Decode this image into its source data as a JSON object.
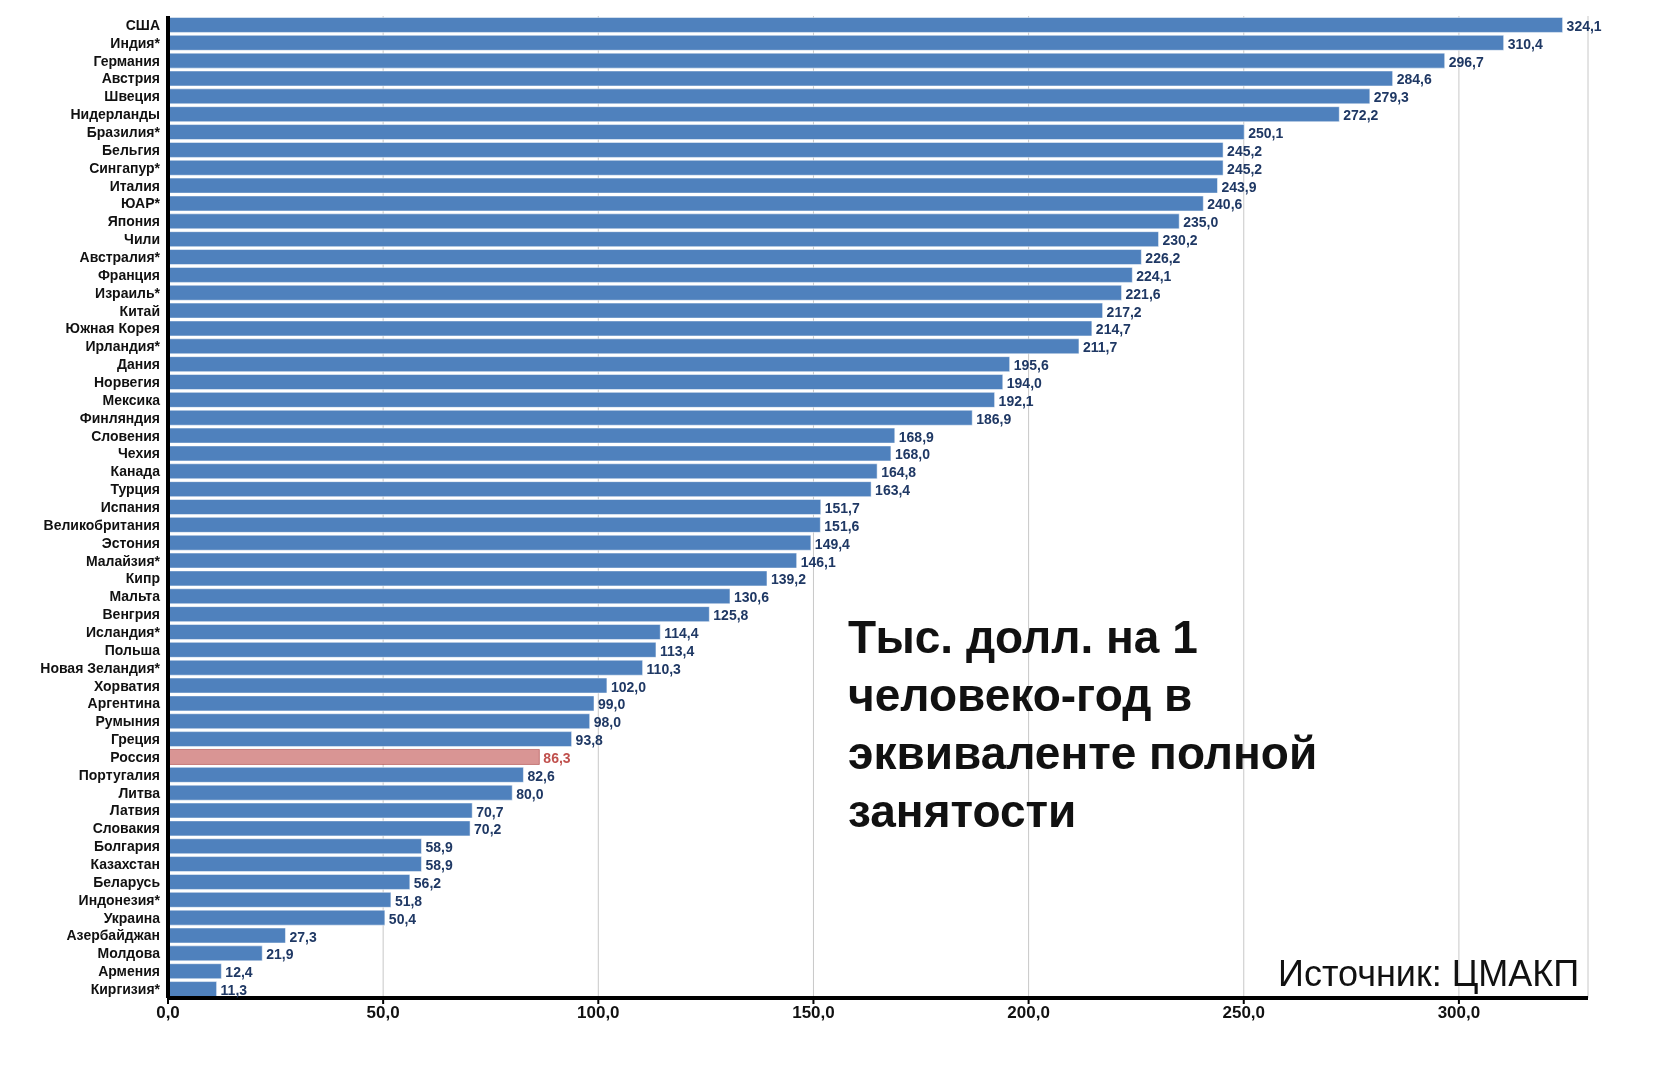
{
  "chart_data": {
    "type": "bar",
    "orientation": "horizontal",
    "categories": [
      "США",
      "Индия*",
      "Германия",
      "Австрия",
      "Швеция",
      "Нидерланды",
      "Бразилия*",
      "Бельгия",
      "Сингапур*",
      "Италия",
      "ЮАР*",
      "Япония",
      "Чили",
      "Австралия*",
      "Франция",
      "Израиль*",
      "Китай",
      "Южная Корея",
      "Ирландия*",
      "Дания",
      "Норвегия",
      "Мексика",
      "Финляндия",
      "Словения",
      "Чехия",
      "Канада",
      "Турция",
      "Испания",
      "Великобритания",
      "Эстония",
      "Малайзия*",
      "Кипр",
      "Мальта",
      "Венгрия",
      "Исландия*",
      "Польша",
      "Новая Зеландия*",
      "Хорватия",
      "Аргентина",
      "Румыния",
      "Греция",
      "Россия",
      "Португалия",
      "Литва",
      "Латвия",
      "Словакия",
      "Болгария",
      "Казахстан",
      "Беларусь",
      "Индонезия*",
      "Украина",
      "Азербайджан",
      "Молдова",
      "Армения",
      "Киргизия*"
    ],
    "values": [
      324.1,
      310.4,
      296.7,
      284.6,
      279.3,
      272.2,
      250.1,
      245.2,
      245.2,
      243.9,
      240.6,
      235.0,
      230.2,
      226.2,
      224.1,
      221.6,
      217.2,
      214.7,
      211.7,
      195.6,
      194.0,
      192.1,
      186.9,
      168.9,
      168.0,
      164.8,
      163.4,
      151.7,
      151.6,
      149.4,
      146.1,
      139.2,
      130.6,
      125.8,
      114.4,
      113.4,
      110.3,
      102.0,
      99.0,
      98.0,
      93.8,
      86.3,
      82.6,
      80.0,
      70.7,
      70.2,
      58.9,
      58.9,
      56.2,
      51.8,
      50.4,
      27.3,
      21.9,
      12.4,
      11.3
    ],
    "value_labels": [
      "324,1",
      "310,4",
      "296,7",
      "284,6",
      "279,3",
      "272,2",
      "250,1",
      "245,2",
      "245,2",
      "243,9",
      "240,6",
      "235,0",
      "230,2",
      "226,2",
      "224,1",
      "221,6",
      "217,2",
      "214,7",
      "211,7",
      "195,6",
      "194,0",
      "192,1",
      "186,9",
      "168,9",
      "168,0",
      "164,8",
      "163,4",
      "151,7",
      "151,6",
      "149,4",
      "146,1",
      "139,2",
      "130,6",
      "125,8",
      "114,4",
      "113,4",
      "110,3",
      "102,0",
      "99,0",
      "98,0",
      "93,8",
      "86,3",
      "82,6",
      "80,0",
      "70,7",
      "70,2",
      "58,9",
      "58,9",
      "56,2",
      "51,8",
      "50,4",
      "27,3",
      "21,9",
      "12,4",
      "11,3"
    ],
    "colors": [
      "#4f81bd",
      "#4f81bd",
      "#4f81bd",
      "#4f81bd",
      "#4f81bd",
      "#4f81bd",
      "#4f81bd",
      "#4f81bd",
      "#4f81bd",
      "#4f81bd",
      "#4f81bd",
      "#4f81bd",
      "#4f81bd",
      "#4f81bd",
      "#4f81bd",
      "#4f81bd",
      "#4f81bd",
      "#4f81bd",
      "#4f81bd",
      "#4f81bd",
      "#4f81bd",
      "#4f81bd",
      "#4f81bd",
      "#4f81bd",
      "#4f81bd",
      "#4f81bd",
      "#4f81bd",
      "#4f81bd",
      "#4f81bd",
      "#4f81bd",
      "#4f81bd",
      "#4f81bd",
      "#4f81bd",
      "#4f81bd",
      "#4f81bd",
      "#4f81bd",
      "#4f81bd",
      "#4f81bd",
      "#4f81bd",
      "#4f81bd",
      "#4f81bd",
      "#d99594",
      "#4f81bd",
      "#4f81bd",
      "#4f81bd",
      "#4f81bd",
      "#4f81bd",
      "#4f81bd",
      "#4f81bd",
      "#4f81bd",
      "#4f81bd",
      "#4f81bd",
      "#4f81bd",
      "#4f81bd",
      "#4f81bd"
    ],
    "xlim": [
      0,
      330
    ],
    "xticks": [
      {
        "value": 0,
        "label": "0,0"
      },
      {
        "value": 50,
        "label": "50,0"
      },
      {
        "value": 100,
        "label": "100,0"
      },
      {
        "value": 150,
        "label": "150,0"
      },
      {
        "value": 200,
        "label": "200,0"
      },
      {
        "value": 250,
        "label": "250,0"
      },
      {
        "value": 300,
        "label": "300,0"
      }
    ],
    "grid": "x",
    "annotations": [
      "Тыс. долл. на 1 человеко-год в эквиваленте полной занятости",
      "Источник: ЦМАКП"
    ]
  }
}
